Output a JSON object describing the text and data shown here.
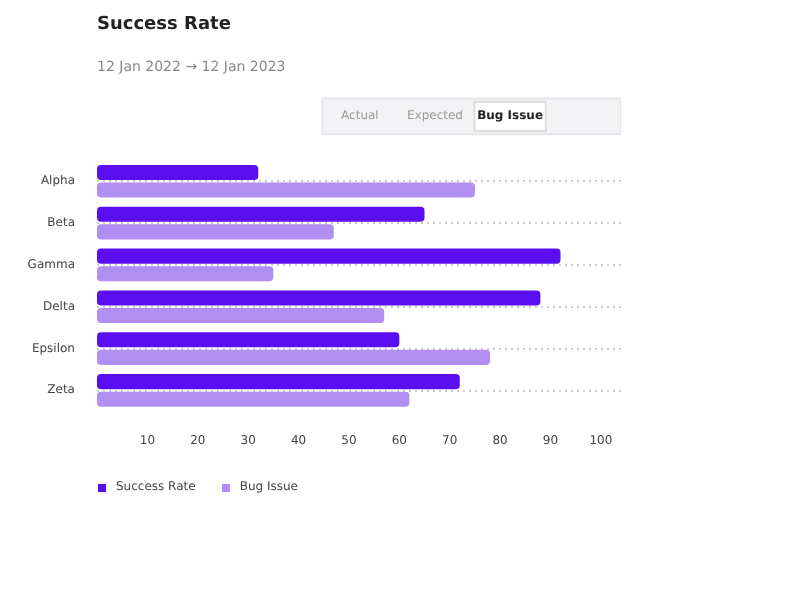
{
  "chart_data": {
    "type": "bar",
    "orientation": "horizontal",
    "title": "Success Rate",
    "subtitle": "12 Jan 2022 → 12 Jan 2023",
    "annotations": [
      "Actual",
      "Expected",
      "Bug Issue"
    ],
    "categories": [
      "Alpha",
      "Beta",
      "Gamma",
      "Delta",
      "Epsilon",
      "Zeta"
    ],
    "series": [
      {
        "name": "Success Rate",
        "color": "#5b0ef0",
        "values": [
          32,
          65,
          92,
          88,
          60,
          72
        ]
      },
      {
        "name": "Bug Issue",
        "color": "#b18ef2",
        "values": [
          75,
          47,
          35,
          57,
          78,
          62
        ]
      }
    ],
    "xlim": [
      0,
      104
    ],
    "xticks": [
      10,
      20,
      30,
      40,
      50,
      60,
      70,
      80,
      90,
      100
    ],
    "grid": "y",
    "legend": "bottom left"
  }
}
